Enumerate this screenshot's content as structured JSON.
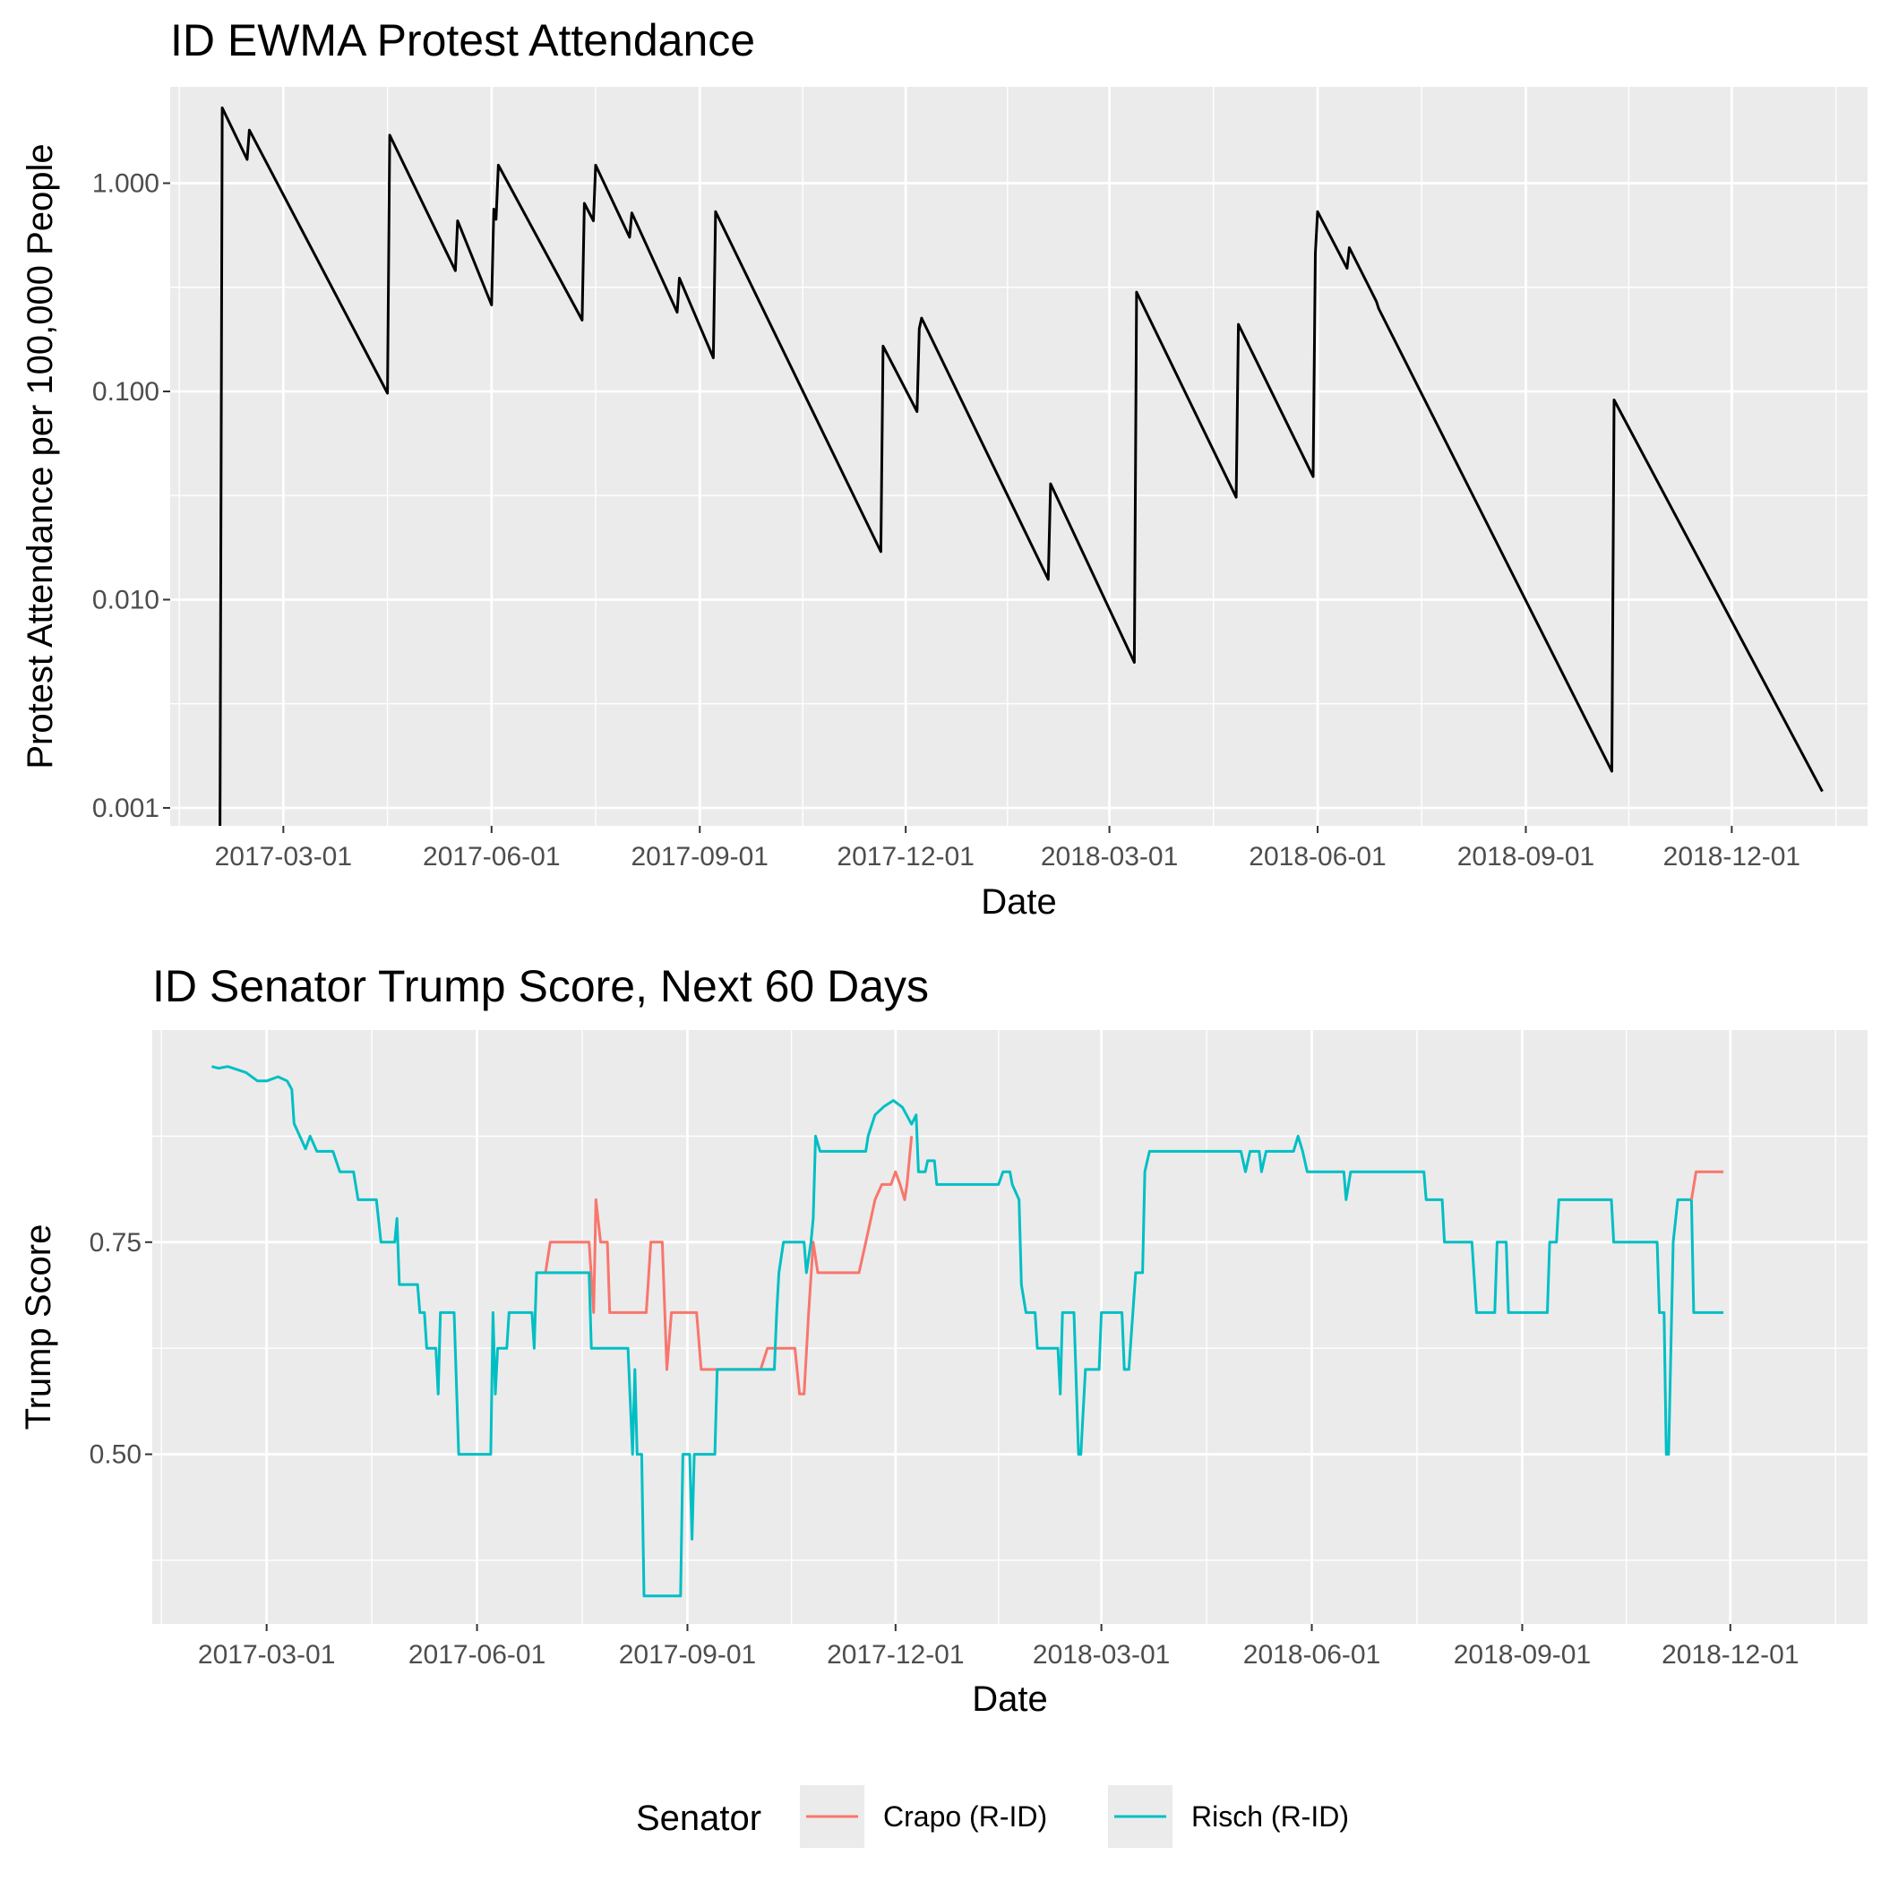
{
  "chart_data": [
    {
      "type": "line",
      "title": "ID EWMA Protest Attendance",
      "xlabel": "Date",
      "ylabel": "Protest Attendance per 100,000 People",
      "x_ticks": [
        "2017-03-01",
        "2017-06-01",
        "2017-09-01",
        "2017-12-01",
        "2018-03-01",
        "2018-06-01",
        "2018-09-01",
        "2018-12-01"
      ],
      "y_ticks": [
        "1.000",
        "0.100",
        "0.010",
        "0.001"
      ],
      "y_tick_values": [
        1,
        0.1,
        0.01,
        0.001
      ],
      "y_scale": "log10",
      "xlim": [
        "2017-01-10",
        "2019-01-30"
      ],
      "ylim": [
        0.00082,
        2.9
      ],
      "grid": true,
      "series": [
        {
          "color": "#000000",
          "points": [
            [
              "2017-02-01",
              0.0008
            ],
            [
              "2017-02-02",
              2.3
            ],
            [
              "2017-02-13",
              1.3
            ],
            [
              "2017-02-14",
              1.8
            ],
            [
              "2017-04-16",
              0.098
            ],
            [
              "2017-04-17",
              1.7
            ],
            [
              "2017-05-16",
              0.38
            ],
            [
              "2017-05-17",
              0.66
            ],
            [
              "2017-06-01",
              0.26
            ],
            [
              "2017-06-02",
              0.75
            ],
            [
              "2017-06-03",
              0.67
            ],
            [
              "2017-06-04",
              1.22
            ],
            [
              "2017-07-11",
              0.22
            ],
            [
              "2017-07-12",
              0.8
            ],
            [
              "2017-07-16",
              0.66
            ],
            [
              "2017-07-17",
              1.22
            ],
            [
              "2017-08-01",
              0.55
            ],
            [
              "2017-08-02",
              0.72
            ],
            [
              "2017-08-22",
              0.24
            ],
            [
              "2017-08-23",
              0.35
            ],
            [
              "2017-09-07",
              0.145
            ],
            [
              "2017-09-08",
              0.73
            ],
            [
              "2017-11-20",
              0.017
            ],
            [
              "2017-11-21",
              0.165
            ],
            [
              "2017-12-06",
              0.08
            ],
            [
              "2017-12-07",
              0.2
            ],
            [
              "2017-12-08",
              0.225
            ],
            [
              "2018-02-02",
              0.0125
            ],
            [
              "2018-02-03",
              0.036
            ],
            [
              "2018-03-12",
              0.005
            ],
            [
              "2018-03-13",
              0.3
            ],
            [
              "2018-04-26",
              0.031
            ],
            [
              "2018-04-27",
              0.21
            ],
            [
              "2018-05-30",
              0.039
            ],
            [
              "2018-05-31",
              0.46
            ],
            [
              "2018-06-01",
              0.73
            ],
            [
              "2018-06-14",
              0.39
            ],
            [
              "2018-06-15",
              0.49
            ],
            [
              "2018-06-27",
              0.27
            ],
            [
              "2018-06-28",
              0.25
            ],
            [
              "2018-10-09",
              0.0015
            ],
            [
              "2018-10-10",
              0.091
            ],
            [
              "2019-01-10",
              0.0012
            ]
          ]
        }
      ]
    },
    {
      "type": "line",
      "title": "ID Senator Trump Score, Next 60 Days",
      "xlabel": "Date",
      "ylabel": "Trump Score",
      "x_ticks": [
        "2017-03-01",
        "2017-06-01",
        "2017-09-01",
        "2017-12-01",
        "2018-03-01",
        "2018-06-01",
        "2018-09-01",
        "2018-12-01"
      ],
      "y_ticks": [
        "0.50",
        "0.75"
      ],
      "y_tick_values": [
        0.5,
        0.75
      ],
      "xlim": [
        "2017-01-10",
        "2019-01-30"
      ],
      "ylim": [
        0.3,
        1.0
      ],
      "grid": true,
      "legend": {
        "title": "Senator",
        "position": "bottom"
      },
      "series": [
        {
          "name": "Crapo (R-ID)",
          "color": "#F8766D",
          "points": [
            [
              "2017-07-01",
              0.715
            ],
            [
              "2017-07-03",
              0.75
            ],
            [
              "2017-07-20",
              0.75
            ],
            [
              "2017-07-22",
              0.667
            ],
            [
              "2017-07-23",
              0.8
            ],
            [
              "2017-07-25",
              0.75
            ],
            [
              "2017-07-28",
              0.75
            ],
            [
              "2017-07-29",
              0.667
            ],
            [
              "2017-08-14",
              0.667
            ],
            [
              "2017-08-16",
              0.75
            ],
            [
              "2017-08-21",
              0.75
            ],
            [
              "2017-08-23",
              0.6
            ],
            [
              "2017-08-25",
              0.667
            ],
            [
              "2017-09-05",
              0.667
            ],
            [
              "2017-09-07",
              0.6
            ],
            [
              "2017-10-03",
              0.6
            ],
            [
              "2017-10-06",
              0.625
            ],
            [
              "2017-10-18",
              0.625
            ],
            [
              "2017-10-20",
              0.571
            ],
            [
              "2017-10-22",
              0.571
            ],
            [
              "2017-10-24",
              0.667
            ],
            [
              "2017-10-26",
              0.75
            ],
            [
              "2017-10-28",
              0.714
            ],
            [
              "2017-11-15",
              0.714
            ],
            [
              "2017-11-18",
              0.75
            ],
            [
              "2017-11-22",
              0.8
            ],
            [
              "2017-11-25",
              0.818
            ],
            [
              "2017-11-29",
              0.818
            ],
            [
              "2017-12-01",
              0.833
            ],
            [
              "2017-12-03",
              0.818
            ],
            [
              "2017-12-05",
              0.8
            ],
            [
              "2017-12-06",
              0.818
            ],
            [
              "2017-12-08",
              0.875
            ]
          ]
        },
        {
          "name": "Risch (R-ID)",
          "color": "#00BFC4",
          "points": [
            [
              "2017-02-05",
              0.957
            ],
            [
              "2017-02-08",
              0.955
            ],
            [
              "2017-02-12",
              0.957
            ],
            [
              "2017-02-20",
              0.95
            ],
            [
              "2017-02-25",
              0.94
            ],
            [
              "2017-03-01",
              0.94
            ],
            [
              "2017-03-06",
              0.945
            ],
            [
              "2017-03-10",
              0.94
            ],
            [
              "2017-03-12",
              0.93
            ],
            [
              "2017-03-13",
              0.89
            ],
            [
              "2017-03-18",
              0.86
            ],
            [
              "2017-03-20",
              0.875
            ],
            [
              "2017-03-23",
              0.857
            ],
            [
              "2017-03-30",
              0.857
            ],
            [
              "2017-04-02",
              0.833
            ],
            [
              "2017-04-08",
              0.833
            ],
            [
              "2017-04-10",
              0.8
            ],
            [
              "2017-04-18",
              0.8
            ],
            [
              "2017-04-20",
              0.75
            ],
            [
              "2017-04-26",
              0.75
            ],
            [
              "2017-04-27",
              0.778
            ],
            [
              "2017-04-28",
              0.7
            ],
            [
              "2017-05-06",
              0.7
            ],
            [
              "2017-05-07",
              0.667
            ],
            [
              "2017-05-09",
              0.667
            ],
            [
              "2017-05-10",
              0.625
            ],
            [
              "2017-05-14",
              0.625
            ],
            [
              "2017-05-15",
              0.571
            ],
            [
              "2017-05-16",
              0.667
            ],
            [
              "2017-05-22",
              0.667
            ],
            [
              "2017-05-24",
              0.5
            ],
            [
              "2017-06-07",
              0.5
            ],
            [
              "2017-06-08",
              0.667
            ],
            [
              "2017-06-09",
              0.571
            ],
            [
              "2017-06-10",
              0.625
            ],
            [
              "2017-06-14",
              0.625
            ],
            [
              "2017-06-15",
              0.667
            ],
            [
              "2017-06-25",
              0.667
            ],
            [
              "2017-06-26",
              0.625
            ],
            [
              "2017-06-27",
              0.714
            ],
            [
              "2017-07-20",
              0.714
            ],
            [
              "2017-07-21",
              0.625
            ],
            [
              "2017-08-06",
              0.625
            ],
            [
              "2017-08-08",
              0.5
            ],
            [
              "2017-08-09",
              0.6
            ],
            [
              "2017-08-10",
              0.5
            ],
            [
              "2017-08-12",
              0.5
            ],
            [
              "2017-08-13",
              0.333
            ],
            [
              "2017-08-29",
              0.333
            ],
            [
              "2017-08-30",
              0.5
            ],
            [
              "2017-09-02",
              0.5
            ],
            [
              "2017-09-03",
              0.4
            ],
            [
              "2017-09-04",
              0.5
            ],
            [
              "2017-09-13",
              0.5
            ],
            [
              "2017-09-14",
              0.6
            ],
            [
              "2017-10-09",
              0.6
            ],
            [
              "2017-10-10",
              0.667
            ],
            [
              "2017-10-11",
              0.714
            ],
            [
              "2017-10-13",
              0.75
            ],
            [
              "2017-10-22",
              0.75
            ],
            [
              "2017-10-23",
              0.714
            ],
            [
              "2017-10-25",
              0.75
            ],
            [
              "2017-10-26",
              0.778
            ],
            [
              "2017-10-27",
              0.875
            ],
            [
              "2017-10-29",
              0.857
            ],
            [
              "2017-11-18",
              0.857
            ],
            [
              "2017-11-19",
              0.875
            ],
            [
              "2017-11-22",
              0.9
            ],
            [
              "2017-11-26",
              0.91
            ],
            [
              "2017-11-30",
              0.917
            ],
            [
              "2017-12-04",
              0.909
            ],
            [
              "2017-12-08",
              0.889
            ],
            [
              "2017-12-10",
              0.9
            ],
            [
              "2017-12-11",
              0.833
            ],
            [
              "2017-12-14",
              0.833
            ],
            [
              "2017-12-15",
              0.846
            ],
            [
              "2017-12-18",
              0.846
            ],
            [
              "2017-12-19",
              0.818
            ],
            [
              "2018-01-15",
              0.818
            ],
            [
              "2018-01-17",
              0.833
            ],
            [
              "2018-01-20",
              0.833
            ],
            [
              "2018-01-21",
              0.818
            ],
            [
              "2018-01-24",
              0.8
            ],
            [
              "2018-01-25",
              0.7
            ],
            [
              "2018-01-27",
              0.667
            ],
            [
              "2018-01-31",
              0.667
            ],
            [
              "2018-02-01",
              0.625
            ],
            [
              "2018-02-10",
              0.625
            ],
            [
              "2018-02-11",
              0.571
            ],
            [
              "2018-02-12",
              0.667
            ],
            [
              "2018-02-17",
              0.667
            ],
            [
              "2018-02-19",
              0.5
            ],
            [
              "2018-02-20",
              0.5
            ],
            [
              "2018-02-22",
              0.6
            ],
            [
              "2018-02-28",
              0.6
            ],
            [
              "2018-03-01",
              0.667
            ],
            [
              "2018-03-10",
              0.667
            ],
            [
              "2018-03-11",
              0.6
            ],
            [
              "2018-03-13",
              0.6
            ],
            [
              "2018-03-16",
              0.714
            ],
            [
              "2018-03-19",
              0.714
            ],
            [
              "2018-03-20",
              0.833
            ],
            [
              "2018-03-22",
              0.857
            ],
            [
              "2018-05-01",
              0.857
            ],
            [
              "2018-05-03",
              0.833
            ],
            [
              "2018-05-05",
              0.857
            ],
            [
              "2018-05-09",
              0.857
            ],
            [
              "2018-05-10",
              0.833
            ],
            [
              "2018-05-12",
              0.857
            ],
            [
              "2018-05-24",
              0.857
            ],
            [
              "2018-05-26",
              0.875
            ],
            [
              "2018-05-28",
              0.857
            ],
            [
              "2018-05-30",
              0.833
            ],
            [
              "2018-06-15",
              0.833
            ],
            [
              "2018-06-16",
              0.8
            ],
            [
              "2018-06-18",
              0.833
            ],
            [
              "2018-07-20",
              0.833
            ],
            [
              "2018-07-21",
              0.8
            ],
            [
              "2018-07-28",
              0.8
            ],
            [
              "2018-07-29",
              0.75
            ],
            [
              "2018-08-10",
              0.75
            ],
            [
              "2018-08-12",
              0.667
            ],
            [
              "2018-08-20",
              0.667
            ],
            [
              "2018-08-21",
              0.75
            ],
            [
              "2018-08-25",
              0.75
            ],
            [
              "2018-08-26",
              0.667
            ],
            [
              "2018-09-12",
              0.667
            ],
            [
              "2018-09-13",
              0.75
            ],
            [
              "2018-09-16",
              0.75
            ],
            [
              "2018-09-17",
              0.8
            ],
            [
              "2018-10-10",
              0.8
            ],
            [
              "2018-10-11",
              0.75
            ],
            [
              "2018-10-30",
              0.75
            ],
            [
              "2018-10-31",
              0.667
            ],
            [
              "2018-11-02",
              0.667
            ],
            [
              "2018-11-03",
              0.5
            ],
            [
              "2018-11-04",
              0.5
            ],
            [
              "2018-11-06",
              0.75
            ],
            [
              "2018-11-08",
              0.8
            ],
            [
              "2018-11-14",
              0.8
            ],
            [
              "2018-11-15",
              0.667
            ],
            [
              "2018-11-28",
              0.667
            ]
          ]
        },
        {
          "name": "Crapo (R-ID)",
          "color": "#F8766D",
          "points": [
            [
              "2018-11-14",
              0.8
            ],
            [
              "2018-11-16",
              0.833
            ],
            [
              "2018-11-28",
              0.833
            ]
          ]
        }
      ]
    }
  ]
}
